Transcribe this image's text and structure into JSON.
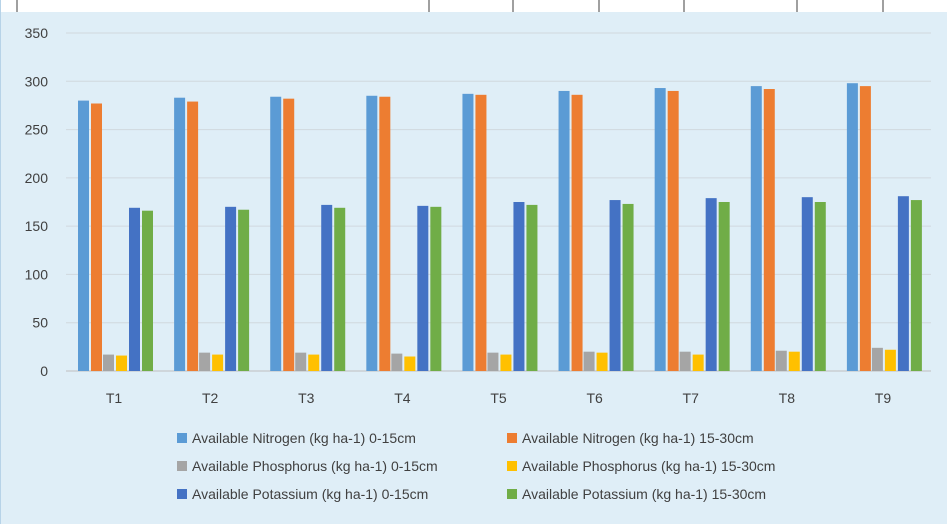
{
  "chart_data": {
    "type": "bar",
    "categories": [
      "T1",
      "T2",
      "T3",
      "T4",
      "T5",
      "T6",
      "T7",
      "T8",
      "T9"
    ],
    "series": [
      {
        "name": "Available Nitrogen (kg ha-1) 0-15cm",
        "color": "#5b9bd5",
        "values": [
          280,
          283,
          284,
          285,
          287,
          290,
          293,
          295,
          298
        ]
      },
      {
        "name": "Available Nitrogen (kg ha-1) 15-30cm",
        "color": "#ed7d31",
        "values": [
          277,
          279,
          282,
          284,
          286,
          286,
          290,
          292,
          295
        ]
      },
      {
        "name": "Available Phosphorus (kg ha-1) 0-15cm",
        "color": "#a5a5a5",
        "values": [
          17,
          19,
          19,
          18,
          19,
          20,
          20,
          21,
          24
        ]
      },
      {
        "name": "Available Phosphorus (kg ha-1) 15-30cm",
        "color": "#ffc000",
        "values": [
          16,
          17,
          17,
          15,
          17,
          19,
          17,
          20,
          22
        ]
      },
      {
        "name": "Available Potassium (kg ha-1) 0-15cm",
        "color": "#4472c4",
        "values": [
          169,
          170,
          172,
          171,
          175,
          177,
          179,
          180,
          181
        ]
      },
      {
        "name": "Available Potassium (kg ha-1) 15-30cm",
        "color": "#70ad47",
        "values": [
          166,
          167,
          169,
          170,
          172,
          173,
          175,
          175,
          177
        ]
      }
    ],
    "yticks": [
      "0",
      "50",
      "100",
      "150",
      "200",
      "250",
      "300",
      "350"
    ],
    "ylim": [
      0,
      350
    ],
    "grid": true,
    "legend_position": "bottom"
  }
}
